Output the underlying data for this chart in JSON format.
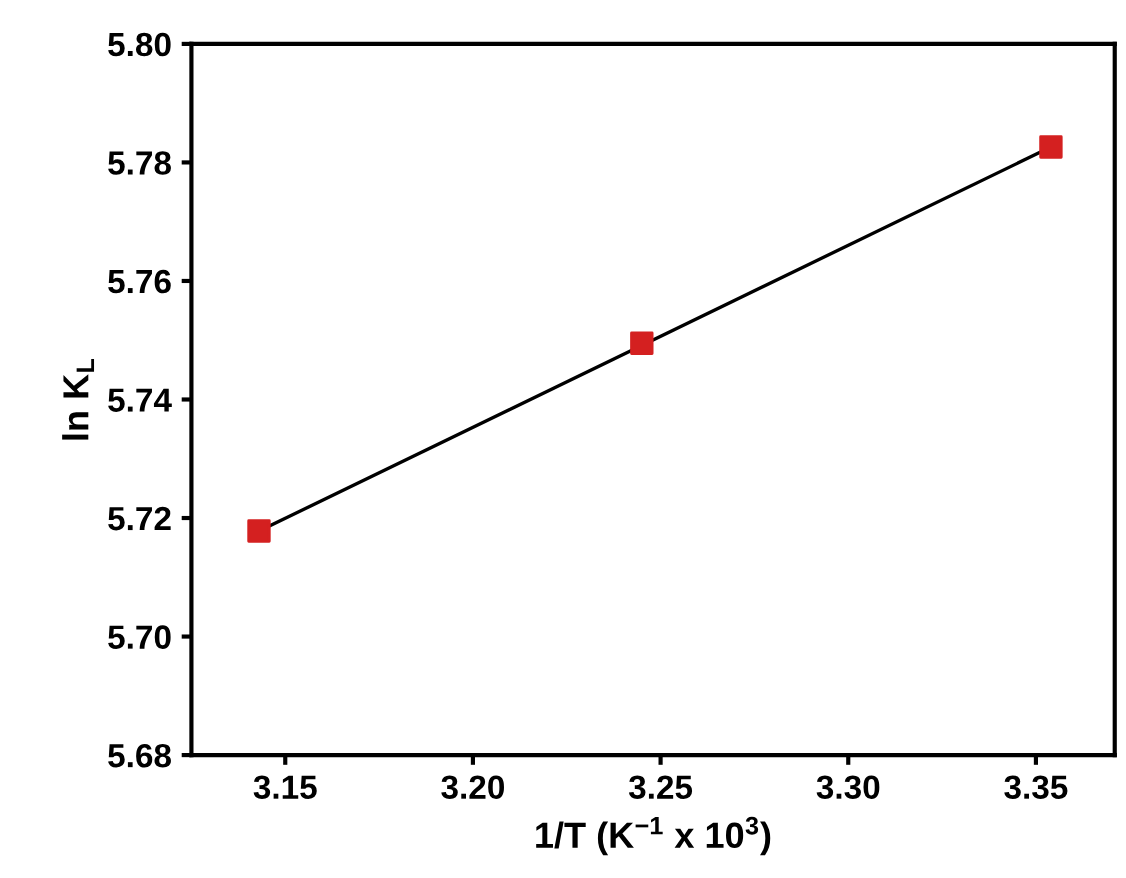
{
  "chart_data": {
    "type": "scatter",
    "xlabel": "1/T (K$^{−1}$ x 10$^{3}$)",
    "ylabel": "ln K$_{L}$",
    "series": [
      {
        "color": "#d42020",
        "x": [
          3.143,
          3.245,
          3.354
        ],
        "values": [
          5.7178,
          5.7495,
          5.7826
        ],
        "marker": "square"
      },
      {
        "type": "line",
        "color": "#000000",
        "x": [
          3.143,
          3.354
        ],
        "values": [
          5.7178,
          5.7826
        ],
        "marker": "none",
        "line_style": "solid"
      }
    ],
    "xlim": [
      3.125,
      3.371
    ],
    "xticks": [
      {
        "value": 3.15,
        "label": "3.15"
      },
      {
        "value": 3.2,
        "label": "3.20"
      },
      {
        "value": 3.25,
        "label": "3.25"
      },
      {
        "value": 3.3,
        "label": "3.30"
      },
      {
        "value": 3.35,
        "label": "3.35"
      }
    ],
    "ylim": [
      5.68,
      5.8
    ],
    "yticks": [
      {
        "value": 5.68,
        "label": "5.68"
      },
      {
        "value": 5.7,
        "label": "5.70"
      },
      {
        "value": 5.72,
        "label": "5.72"
      },
      {
        "value": 5.74,
        "label": "5.74"
      },
      {
        "value": 5.76,
        "label": "5.76"
      },
      {
        "value": 5.78,
        "label": "5.78"
      },
      {
        "value": 5.8,
        "label": "5.80"
      }
    ],
    "grid": false,
    "legend": false
  }
}
